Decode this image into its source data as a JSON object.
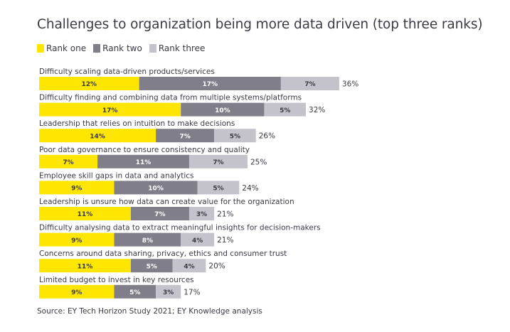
{
  "chart_data": {
    "type": "bar",
    "orientation": "horizontal",
    "stacked": true,
    "title": "Challenges to organization being more data driven (top three ranks)",
    "legend_position": "top-left",
    "series": [
      {
        "name": "Rank one",
        "color": "#ffe600",
        "values": [
          12,
          17,
          14,
          7,
          9,
          11,
          9,
          11,
          9
        ]
      },
      {
        "name": "Rank two",
        "color": "#7f7e89",
        "values": [
          17,
          10,
          7,
          11,
          10,
          7,
          8,
          5,
          5
        ]
      },
      {
        "name": "Rank three",
        "color": "#c4c3cb",
        "values": [
          7,
          5,
          5,
          7,
          5,
          3,
          4,
          4,
          3
        ]
      }
    ],
    "categories": [
      "Difficulty scaling data-driven products/services",
      "Difficulty finding and combining data from multiple systems/platforms",
      "Leadership that relies on intuition to make decisions",
      "Poor data governance to ensure consistency and quality",
      "Employee skill gaps in data and analytics",
      "Leadership is unsure how data can create value for the organization",
      "Difficulty analysing data to extract meaningful insights for decision-makers",
      "Concerns around data sharing, privacy, ethics and consumer trust",
      "Limited budget to invest in key resources"
    ],
    "totals": [
      36,
      32,
      26,
      25,
      24,
      21,
      21,
      20,
      17
    ],
    "value_suffix": "%",
    "source": "Source: EY Tech Horizon Study 2021; EY Knowledge analysis"
  }
}
